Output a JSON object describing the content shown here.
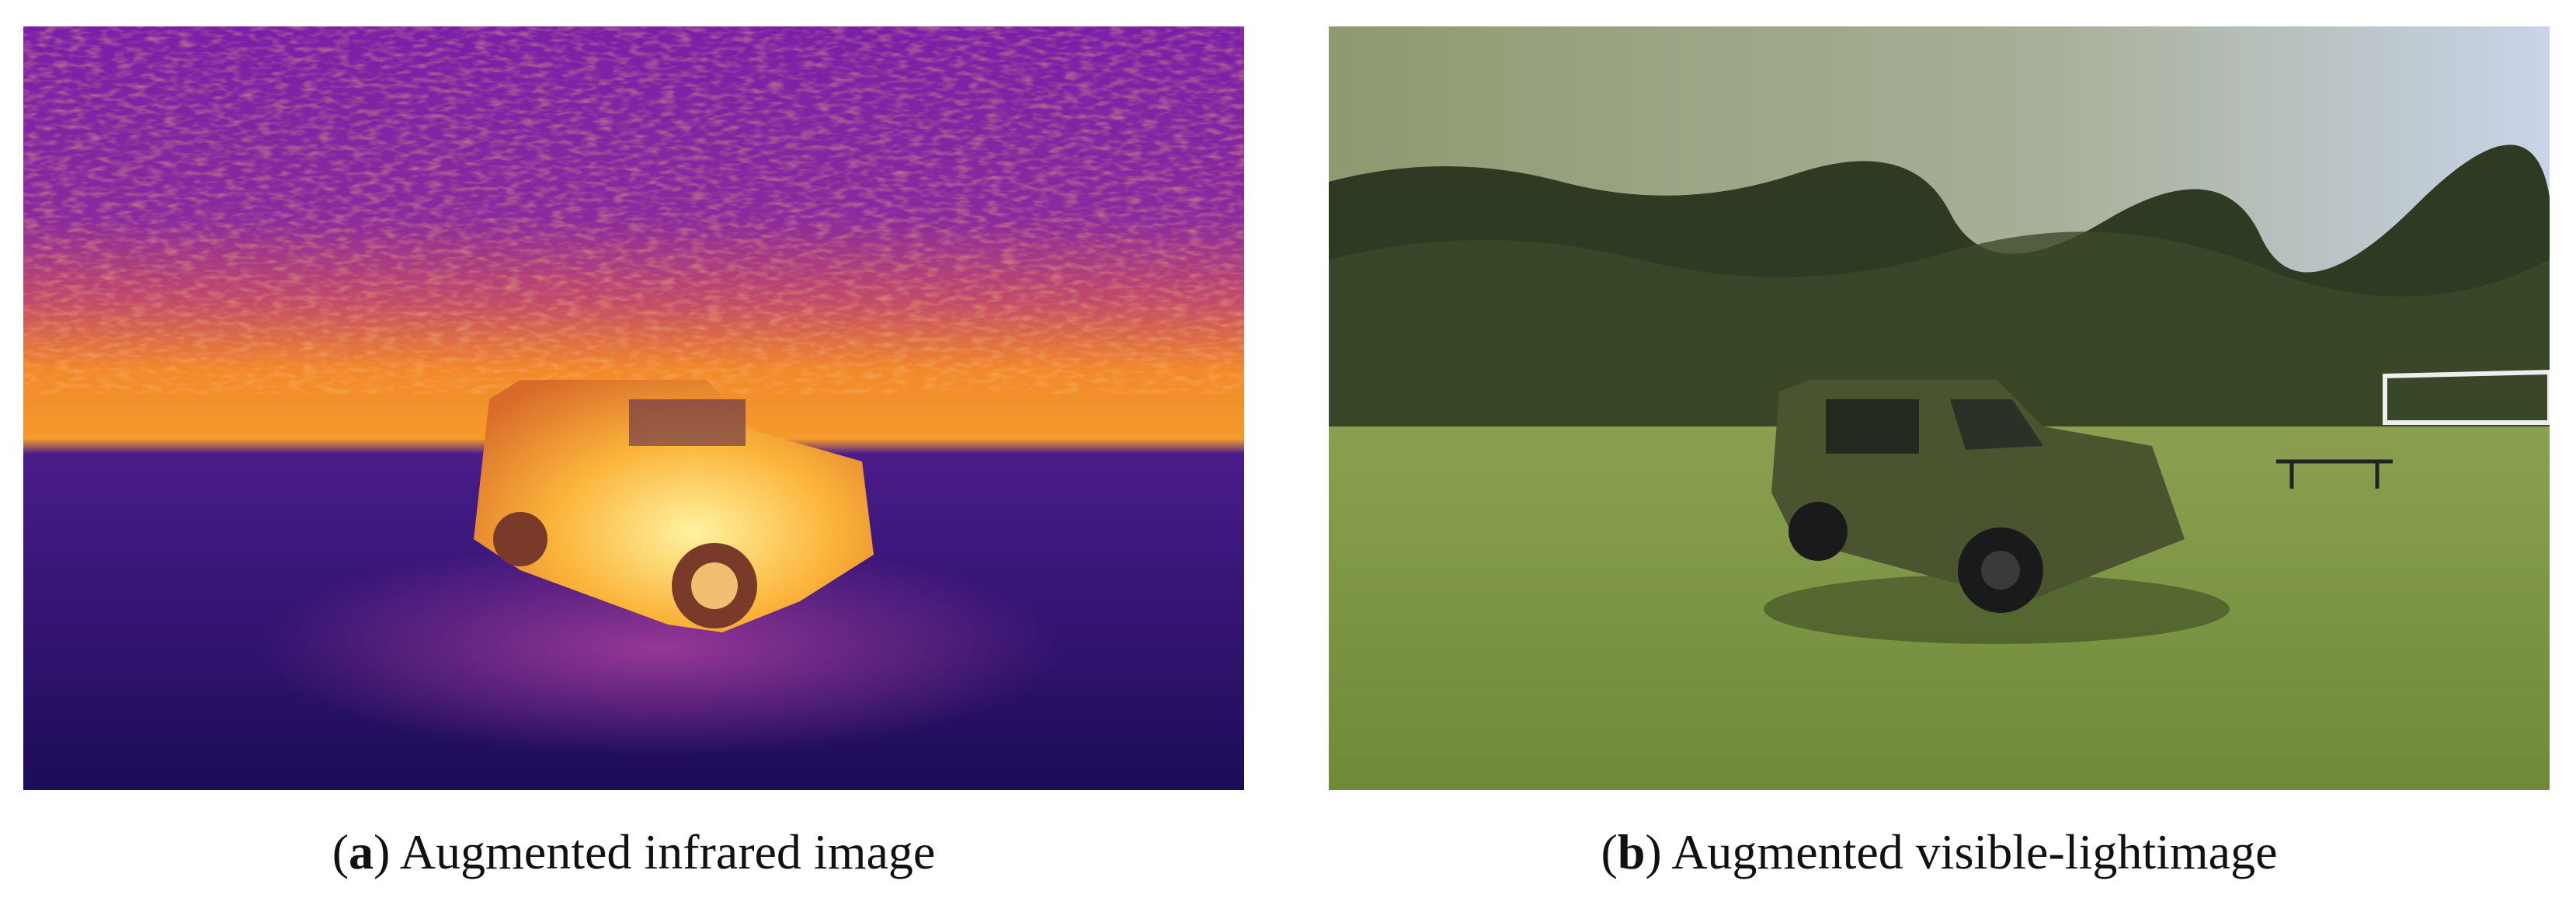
{
  "figure": {
    "panels": [
      {
        "open": "(",
        "label": "a",
        "text": ") Augmented infrared image"
      },
      {
        "open": "(",
        "label": "b",
        "text": ") Augmented visible-lightimage"
      }
    ]
  }
}
